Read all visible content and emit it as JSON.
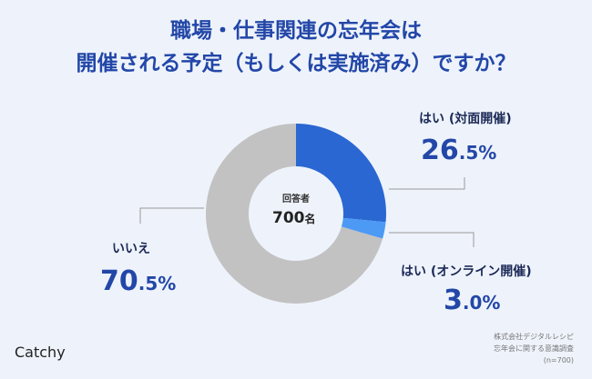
{
  "title": {
    "line1": "職場・仕事関連の忘年会は",
    "line2": "開催される予定（もしくは実施済み）ですか？"
  },
  "center": {
    "caption": "回答者",
    "count": "700",
    "unit": "名"
  },
  "brand": "Catchy",
  "source": {
    "line1": "株式会社デジタルレシピ",
    "line2": "忘年会に関する意識調査",
    "line3": "(n=700)"
  },
  "colors": {
    "background": "#eef3fb",
    "title": "#2347a8",
    "slice_offline": "#2a67d2",
    "slice_online": "#4d9af5",
    "slice_no": "#c2c2c2",
    "leader": "#9a9a9a"
  },
  "chart_data": {
    "type": "pie",
    "donut": true,
    "categories": [
      "はい (対面開催)",
      "はい (オンライン開催)",
      "いいえ"
    ],
    "values": [
      26.5,
      3.0,
      70.5
    ],
    "value_labels": [
      {
        "main": "26",
        "decimal": ".5%"
      },
      {
        "main": "3",
        "decimal": ".0%"
      },
      {
        "main": "70",
        "decimal": ".5%"
      }
    ],
    "unit": "%",
    "start": "12 o'clock",
    "direction": "clockwise"
  }
}
